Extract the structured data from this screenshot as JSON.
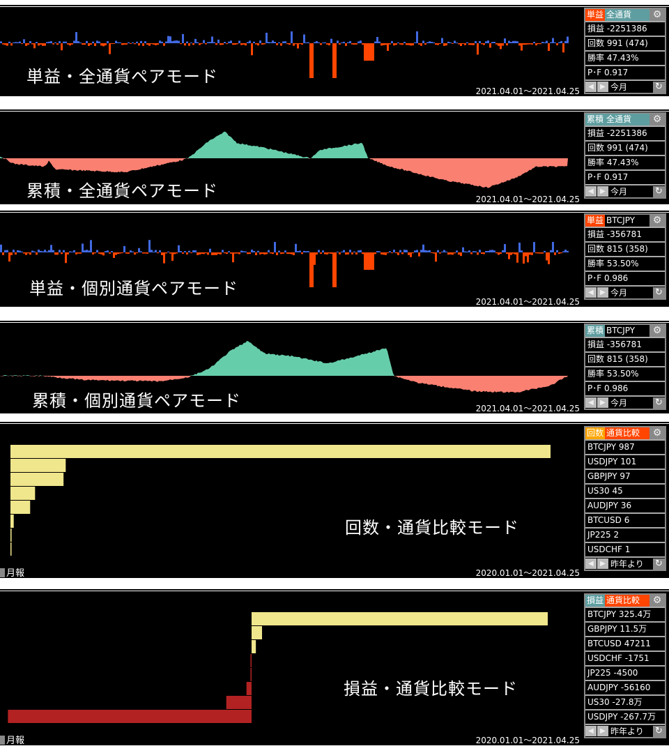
{
  "colors": {
    "positive_bar": "#4169e1",
    "negative_bar": "#ff4500",
    "positive_area": "#66cdaa",
    "negative_area": "#fa8072",
    "compare_pos": "#f0e68c",
    "compare_neg": "#b22222",
    "tag_orange": "#ff4500",
    "tag_teal": "#5f9ea0",
    "tag_amber": "#ffa500"
  },
  "panels": [
    {
      "label": "単益・全通貨ペアモード",
      "date_range": "2021.04.01～2021.04.25",
      "tag1": "単益",
      "tag2": "全通貨",
      "rows": [
        "損益 -2251386",
        "回数 991 (474)",
        "勝率 47.43%",
        "P･F 0.917"
      ],
      "period": "今月"
    },
    {
      "label": "累積・全通貨ペアモード",
      "date_range": "2021.04.01～2021.04.25",
      "tag1": "累積",
      "tag2": "全通貨",
      "rows": [
        "損益 -2251386",
        "回数 991 (474)",
        "勝率 47.43%",
        "P･F 0.917"
      ],
      "period": "今月"
    },
    {
      "label": "単益・個別通貨ペアモード",
      "date_range": "2021.04.01～2021.04.25",
      "tag1": "単益",
      "tag2": "BTCJPY",
      "rows": [
        "損益 -356781",
        "回数 815 (358)",
        "勝率 53.50%",
        "P･F 0.986"
      ],
      "period": "今月"
    },
    {
      "label": "累積・個別通貨ペアモード",
      "date_range": "2021.04.01～2021.04.25",
      "tag1": "累積",
      "tag2": "BTCJPY",
      "rows": [
        "損益 -356781",
        "回数 815 (358)",
        "勝率 53.50%",
        "P･F 0.986"
      ],
      "period": "今月"
    },
    {
      "label": "回数・通貨比較モード",
      "date_range": "2020.01.01～2021.04.25",
      "tag1": "回数",
      "tag2": "通貨比較",
      "period": "昨年より",
      "monthly": "月報",
      "rows": [
        "BTCJPY 987",
        "USDJPY 101",
        "GBPJPY 97",
        "US30     45",
        "AUDJPY 36",
        "BTCUSD 6",
        "JP225     2",
        "USDCHF 1"
      ]
    },
    {
      "label": "損益・通貨比較モード",
      "date_range": "2020.01.01～2021.04.25",
      "tag1": "損益",
      "tag2": "通貨比較",
      "period": "昨年より",
      "monthly": "月報",
      "rows": [
        "BTCJPY 325.4万",
        "GBPJPY 11.5万",
        "BTCUSD 47211",
        "USDCHF -1751",
        "JP225     -4500",
        "AUDJPY -56160",
        "US30     -27.8万",
        "USDJPY -267.7万"
      ]
    }
  ],
  "chart_data": [
    {
      "type": "bar",
      "orientation": "horizontal",
      "categories": [
        "BTCJPY",
        "USDJPY",
        "GBPJPY",
        "US30",
        "AUDJPY",
        "BTCUSD",
        "JP225",
        "USDCHF"
      ],
      "values": [
        987,
        101,
        97,
        45,
        36,
        6,
        2,
        1
      ]
    },
    {
      "type": "bar",
      "orientation": "horizontal",
      "categories": [
        "BTCJPY",
        "GBPJPY",
        "BTCUSD",
        "USDCHF",
        "JP225",
        "AUDJPY",
        "US30",
        "USDJPY"
      ],
      "values": [
        3254000,
        115000,
        47211,
        -1751,
        -4500,
        -56160,
        -278000,
        -2677000
      ]
    }
  ]
}
